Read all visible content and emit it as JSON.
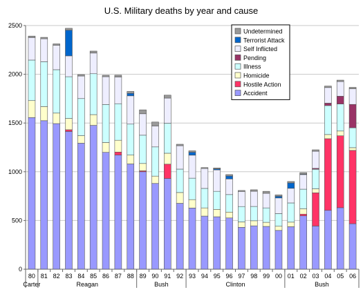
{
  "chart_data": {
    "type": "bar",
    "stacked": true,
    "title": "U.S. Military deaths by year and cause",
    "xlabel": "",
    "ylabel": "",
    "ylim": [
      0,
      2500
    ],
    "yticks": [
      0,
      500,
      1000,
      1500,
      2000,
      2500
    ],
    "grid": true,
    "legend_position": "top-right",
    "categories": [
      "80",
      "81",
      "82",
      "83",
      "84",
      "85",
      "86",
      "87",
      "88",
      "89",
      "90",
      "91",
      "92",
      "93",
      "94",
      "95",
      "96",
      "97",
      "98",
      "99",
      "00",
      "01",
      "02",
      "03",
      "04",
      "05",
      "06"
    ],
    "groups": [
      {
        "name": "Carter",
        "from": 0,
        "to": 0
      },
      {
        "name": "Reagan",
        "from": 1,
        "to": 8
      },
      {
        "name": "Bush",
        "from": 9,
        "to": 12
      },
      {
        "name": "Clinton",
        "from": 13,
        "to": 20
      },
      {
        "name": "Bush",
        "from": 21,
        "to": 26
      }
    ],
    "series": [
      {
        "name": "Accident",
        "color": "#9999ff",
        "values": [
          1556,
          1524,
          1494,
          1413,
          1293,
          1476,
          1199,
          1172,
          1080,
          1000,
          880,
          931,
          676,
          628,
          545,
          538,
          526,
          430,
          445,
          439,
          398,
          436,
          548,
          443,
          604,
          631,
          467
        ]
      },
      {
        "name": "Hostile Action",
        "color": "#ff3366",
        "values": [
          0,
          0,
          0,
          18,
          0,
          0,
          0,
          30,
          0,
          10,
          0,
          147,
          0,
          0,
          0,
          0,
          0,
          0,
          0,
          0,
          0,
          0,
          17,
          341,
          735,
          738,
          752
        ]
      },
      {
        "name": "Homicide",
        "color": "#ffffcc",
        "values": [
          174,
          145,
          108,
          116,
          77,
          110,
          101,
          121,
          91,
          75,
          75,
          112,
          111,
          86,
          84,
          76,
          60,
          55,
          52,
          42,
          43,
          47,
          56,
          41,
          43,
          49,
          28
        ]
      },
      {
        "name": "Illness",
        "color": "#ccffff",
        "values": [
          416,
          460,
          445,
          428,
          381,
          420,
          390,
          375,
          318,
          290,
          300,
          308,
          240,
          220,
          200,
          185,
          180,
          158,
          147,
          148,
          130,
          197,
          200,
          200,
          297,
          277,
          204
        ]
      },
      {
        "name": "Pending",
        "color": "#993366",
        "values": [
          0,
          0,
          0,
          0,
          0,
          0,
          0,
          0,
          0,
          0,
          0,
          0,
          0,
          0,
          0,
          0,
          0,
          0,
          0,
          0,
          0,
          0,
          0,
          10,
          25,
          80,
          240
        ]
      },
      {
        "name": "Self Inflicted",
        "color": "#eeeeff",
        "values": [
          231,
          235,
          250,
          214,
          231,
          212,
          285,
          273,
          290,
          220,
          215,
          258,
          240,
          236,
          204,
          220,
          160,
          155,
          156,
          150,
          160,
          150,
          150,
          175,
          160,
          150,
          160
        ]
      },
      {
        "name": "Terrorist Attack",
        "color": "#0066cc",
        "values": [
          0,
          0,
          0,
          263,
          0,
          0,
          0,
          0,
          25,
          0,
          0,
          0,
          0,
          30,
          0,
          10,
          30,
          0,
          0,
          0,
          17,
          55,
          5,
          0,
          0,
          0,
          0
        ]
      },
      {
        "name": "Undetermined",
        "color": "#999999",
        "values": [
          15,
          15,
          15,
          20,
          15,
          20,
          15,
          20,
          20,
          40,
          40,
          30,
          15,
          15,
          10,
          10,
          15,
          10,
          15,
          20,
          15,
          15,
          15,
          15,
          15,
          15,
          15
        ]
      }
    ]
  }
}
